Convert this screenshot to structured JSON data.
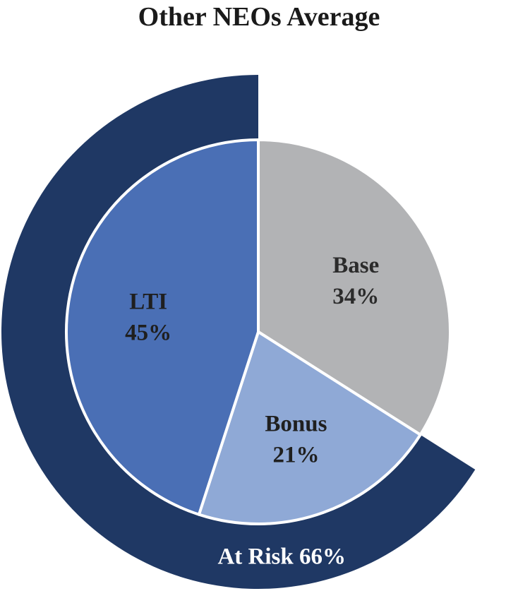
{
  "chart_data": {
    "type": "pie",
    "title": "Other NEOs Average",
    "slices": [
      {
        "name": "Base",
        "value": 34,
        "label": "34%",
        "color": "#b2b3b5",
        "text_color": "#2b2b2b"
      },
      {
        "name": "Bonus",
        "value": 21,
        "label": "21%",
        "color": "#8fa9d6",
        "text_color": "#1f1f1f"
      },
      {
        "name": "LTI",
        "value": 45,
        "label": "45%",
        "color": "#4a6fb5",
        "text_color": "#1f1f1f"
      }
    ],
    "outer_ring": {
      "name": "At Risk",
      "value": 66,
      "label": "At Risk 66%",
      "covers": [
        "Bonus",
        "LTI"
      ],
      "color": "#1f3864",
      "text_color": "#ffffff"
    }
  }
}
